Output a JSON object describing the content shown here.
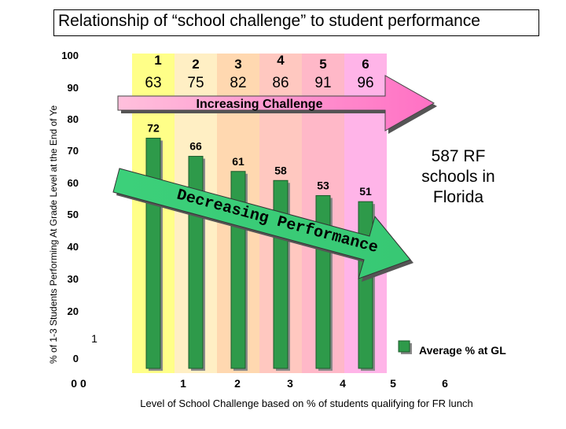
{
  "chart_data": {
    "type": "bar",
    "title": "Relationship of “school challenge” to student performance",
    "ylabel": "% of 1-3 Students Performing At Grade Level at the End of Ye",
    "xlabel": "Level of School Challenge based on % of students qualifying for FR lunch",
    "categories": [
      "1",
      "2",
      "3",
      "4",
      "5",
      "6"
    ],
    "x_tick_labels": [
      "0 0",
      "1",
      "2",
      "3",
      "4",
      "5",
      "6"
    ],
    "y_tick_labels": [
      "100",
      "90",
      "80",
      "70",
      "60",
      "50",
      "40",
      "30",
      "20",
      "0"
    ],
    "y_stray_label": "1",
    "ylim": [
      0,
      100
    ],
    "series": [
      {
        "name": "Average % at GL",
        "values": [
          72,
          66,
          61,
          58,
          53,
          51
        ]
      }
    ],
    "data_labels": [
      "72",
      "66",
      "61",
      "58",
      "53",
      "51"
    ],
    "fr_lunch_percent": [
      "63",
      "75",
      "82",
      "86",
      "91",
      "96"
    ],
    "band_colors": [
      "#ffff88",
      "#ffefc4",
      "#ffd8b0",
      "#ffc8c0",
      "#ffb8c8",
      "#ffb4e8"
    ],
    "bar_color": "#2e9a4a",
    "legend": {
      "label": "Average % at GL",
      "position": "bottom-right"
    },
    "annotations": {
      "challenge_arrow": "Increasing Challenge",
      "performance_arrow": "Decreasing Performance",
      "note": "587 RF schools in Florida"
    },
    "grid": false
  }
}
